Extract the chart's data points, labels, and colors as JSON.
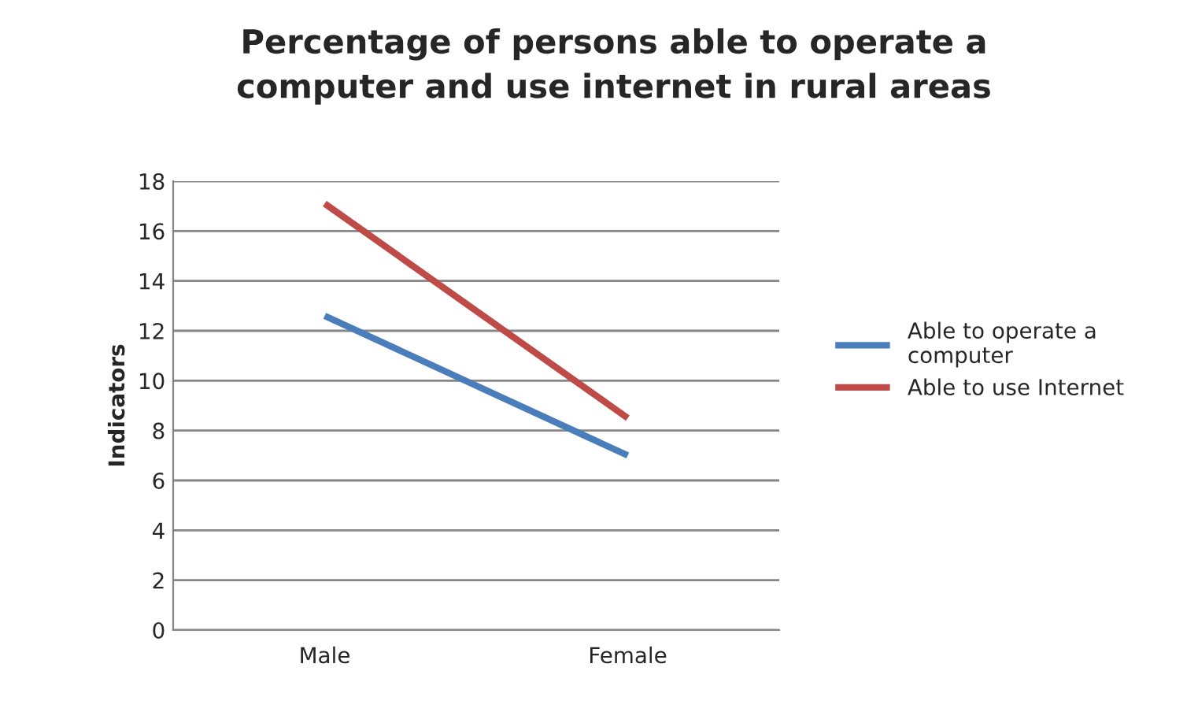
{
  "chart_data": {
    "type": "line",
    "title": "Percentage of persons able to operate a\ncomputer and use internet in rural areas",
    "ylabel": "Indicators",
    "categories": [
      "Male",
      "Female"
    ],
    "series": [
      {
        "name": "Able to operate a\ncomputer",
        "color": "#4a7ebb",
        "values": [
          12.6,
          7.0
        ]
      },
      {
        "name": "Able to use Internet",
        "color": "#be4b48",
        "values": [
          17.1,
          8.5
        ]
      }
    ],
    "ylim": [
      0,
      18
    ],
    "yticks": [
      0,
      2,
      4,
      6,
      8,
      10,
      12,
      14,
      16,
      18
    ],
    "grid": "y",
    "legend": "right",
    "marker": "none",
    "line_style": "solid"
  }
}
